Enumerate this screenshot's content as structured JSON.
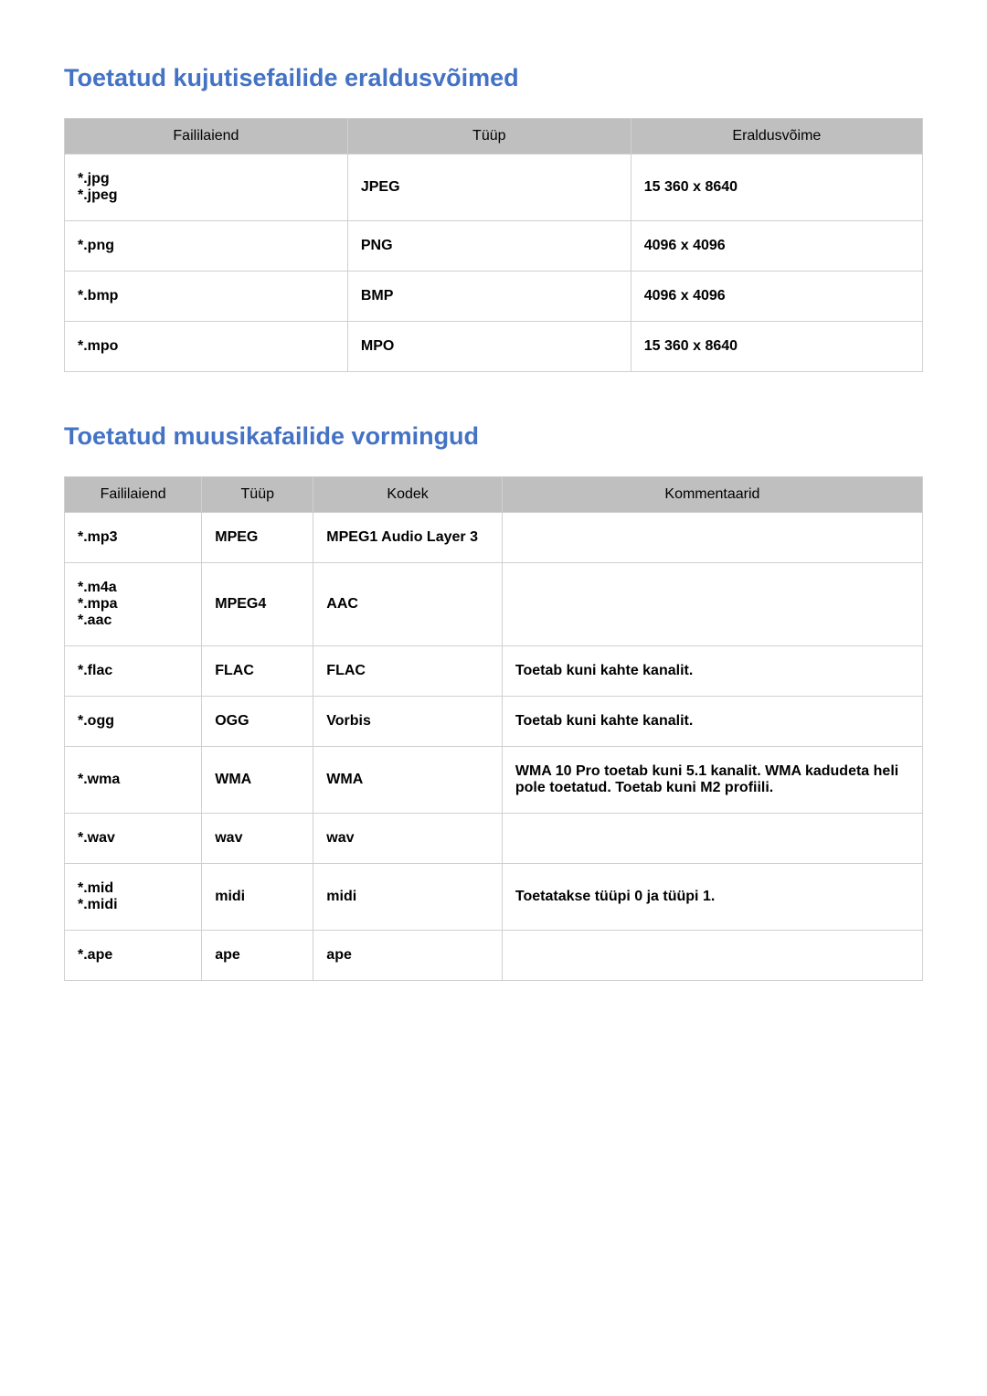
{
  "colors": {
    "heading": "#4472c4",
    "header_bg": "#bfbfbf",
    "border": "#d0d0d0",
    "text": "#000000",
    "page_bg": "#ffffff"
  },
  "typography": {
    "heading_fontsize_pt": 20,
    "body_fontsize_pt": 12,
    "font_family": "Arial"
  },
  "section1": {
    "heading": "Toetatud kujutisefailide eraldusvõimed",
    "table": {
      "type": "table",
      "columns": [
        "Faililaiend",
        "Tüüp",
        "Eraldusvõime"
      ],
      "rows": [
        [
          "*.jpg\n*.jpeg",
          "JPEG",
          "15 360 x 8640"
        ],
        [
          "*.png",
          "PNG",
          "4096 x 4096"
        ],
        [
          "*.bmp",
          "BMP",
          "4096 x 4096"
        ],
        [
          "*.mpo",
          "MPO",
          "15 360 x 8640"
        ]
      ]
    }
  },
  "section2": {
    "heading": "Toetatud muusikafailide vormingud",
    "table": {
      "type": "table",
      "columns": [
        "Faililaiend",
        "Tüüp",
        "Kodek",
        "Kommentaarid"
      ],
      "rows": [
        [
          "*.mp3",
          "MPEG",
          "MPEG1 Audio Layer 3",
          ""
        ],
        [
          "*.m4a\n*.mpa\n*.aac",
          "MPEG4",
          "AAC",
          ""
        ],
        [
          "*.flac",
          "FLAC",
          "FLAC",
          "Toetab kuni kahte kanalit."
        ],
        [
          "*.ogg",
          "OGG",
          "Vorbis",
          "Toetab kuni kahte kanalit."
        ],
        [
          "*.wma",
          "WMA",
          "WMA",
          "WMA 10 Pro toetab kuni 5.1 kanalit. WMA kadudeta heli pole toetatud. Toetab kuni M2 profiili."
        ],
        [
          "*.wav",
          "wav",
          "wav",
          ""
        ],
        [
          "*.mid\n*.midi",
          "midi",
          "midi",
          "Toetatakse tüüpi 0 ja tüüpi 1."
        ],
        [
          "*.ape",
          "ape",
          "ape",
          ""
        ]
      ]
    }
  }
}
